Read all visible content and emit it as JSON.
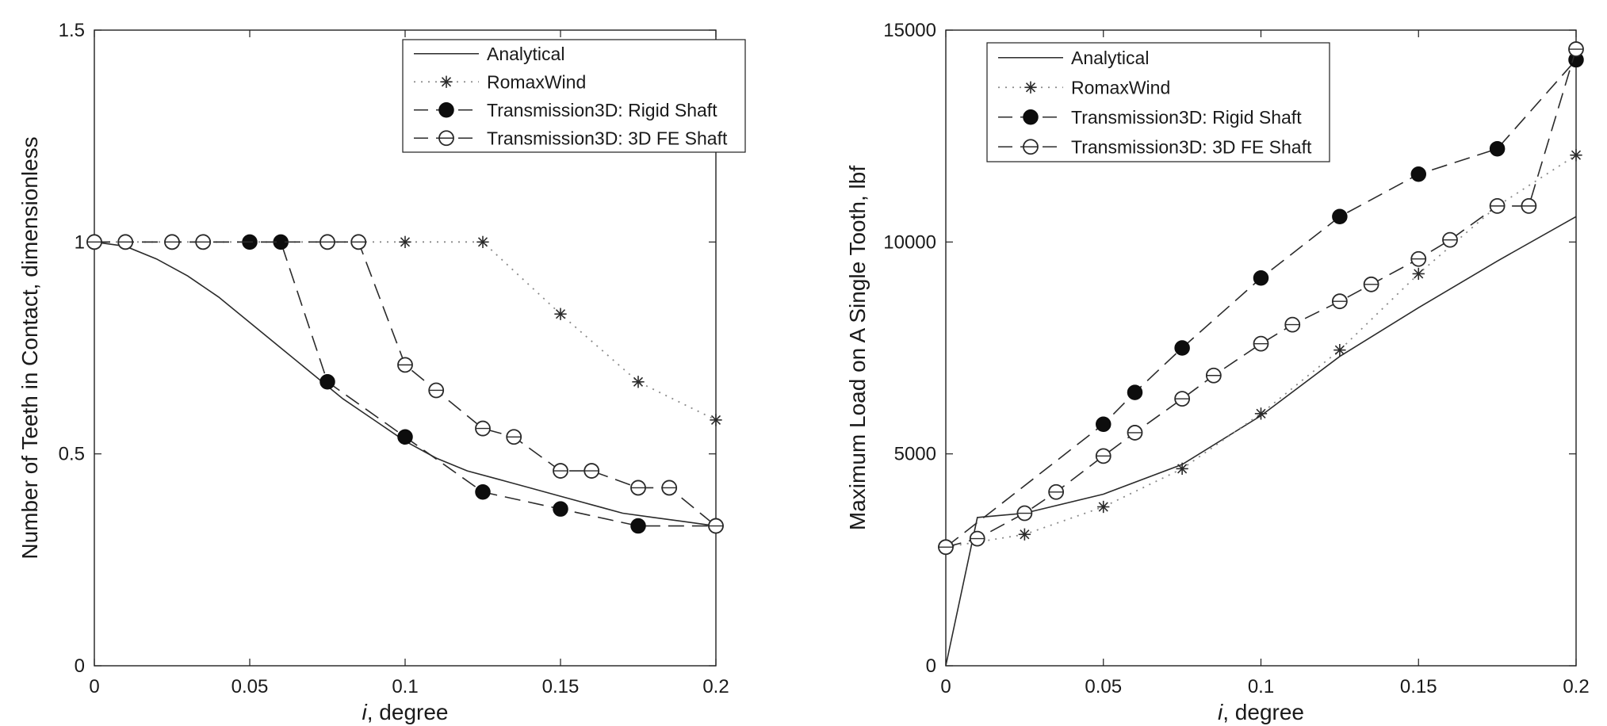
{
  "chart_data": [
    {
      "type": "line",
      "xlabel": "degree",
      "xlabel_italic_prefix": "i",
      "ylabel": "Number of Teeth in Contact, dimensionless",
      "xlim": [
        0,
        0.2
      ],
      "ylim": [
        0,
        1.5
      ],
      "x_ticks": [
        0,
        0.05,
        0.1,
        0.15,
        0.2
      ],
      "x_tick_labels": [
        "0",
        "0.05",
        "0.1",
        "0.15",
        "0.2"
      ],
      "y_ticks": [
        0,
        0.5,
        1,
        1.5
      ],
      "y_tick_labels": [
        "0",
        "0.5",
        "1",
        "1.5"
      ],
      "grid": false,
      "legend_position": "top-right",
      "series": [
        {
          "name": "Analytical",
          "style": "solid",
          "marker": "none",
          "points": [
            [
              0,
              1
            ],
            [
              0.01,
              0.99
            ],
            [
              0.02,
              0.96
            ],
            [
              0.03,
              0.92
            ],
            [
              0.04,
              0.87
            ],
            [
              0.05,
              0.81
            ],
            [
              0.06,
              0.75
            ],
            [
              0.07,
              0.69
            ],
            [
              0.08,
              0.63
            ],
            [
              0.09,
              0.58
            ],
            [
              0.1,
              0.53
            ],
            [
              0.11,
              0.49
            ],
            [
              0.12,
              0.46
            ],
            [
              0.13,
              0.44
            ],
            [
              0.14,
              0.42
            ],
            [
              0.15,
              0.4
            ],
            [
              0.16,
              0.38
            ],
            [
              0.17,
              0.36
            ],
            [
              0.18,
              0.35
            ],
            [
              0.19,
              0.34
            ],
            [
              0.2,
              0.33
            ]
          ]
        },
        {
          "name": "RomaxWind",
          "style": "dotted",
          "marker": "asterisk",
          "points": [
            [
              0,
              1
            ],
            [
              0.025,
              1
            ],
            [
              0.075,
              1
            ],
            [
              0.1,
              1
            ],
            [
              0.125,
              1
            ],
            [
              0.15,
              0.83
            ],
            [
              0.175,
              0.67
            ],
            [
              0.2,
              0.58
            ]
          ]
        },
        {
          "name": "Transmission3D: Rigid Shaft",
          "style": "dashed",
          "marker": "filled-circle",
          "points": [
            [
              0,
              1
            ],
            [
              0.025,
              1
            ],
            [
              0.05,
              1
            ],
            [
              0.06,
              1
            ],
            [
              0.075,
              0.67
            ],
            [
              0.1,
              0.54
            ],
            [
              0.125,
              0.41
            ],
            [
              0.15,
              0.37
            ],
            [
              0.175,
              0.33
            ],
            [
              0.2,
              0.33
            ]
          ]
        },
        {
          "name": "Transmission3D: 3D FE Shaft",
          "style": "dashed",
          "marker": "open-circle",
          "points": [
            [
              0,
              1
            ],
            [
              0.01,
              1
            ],
            [
              0.025,
              1
            ],
            [
              0.035,
              1
            ],
            [
              0.075,
              1
            ],
            [
              0.085,
              1
            ],
            [
              0.1,
              0.71
            ],
            [
              0.11,
              0.65
            ],
            [
              0.125,
              0.56
            ],
            [
              0.135,
              0.54
            ],
            [
              0.15,
              0.46
            ],
            [
              0.16,
              0.46
            ],
            [
              0.175,
              0.42
            ],
            [
              0.185,
              0.42
            ],
            [
              0.2,
              0.33
            ]
          ]
        }
      ]
    },
    {
      "type": "line",
      "xlabel": "degree",
      "xlabel_italic_prefix": "i",
      "ylabel": "Maximum Load on A Single Tooth, lbf",
      "xlim": [
        0,
        0.2
      ],
      "ylim": [
        0,
        15000
      ],
      "x_ticks": [
        0,
        0.05,
        0.1,
        0.15,
        0.2
      ],
      "x_tick_labels": [
        "0",
        "0.05",
        "0.1",
        "0.15",
        "0.2"
      ],
      "y_ticks": [
        0,
        5000,
        10000,
        15000
      ],
      "y_tick_labels": [
        "0",
        "5000",
        "10000",
        "15000"
      ],
      "grid": false,
      "legend_position": "top-left",
      "series": [
        {
          "name": "Analytical",
          "style": "solid",
          "marker": "none",
          "points": [
            [
              0,
              0
            ],
            [
              0.01,
              3500
            ],
            [
              0.025,
              3600
            ],
            [
              0.05,
              4050
            ],
            [
              0.075,
              4750
            ],
            [
              0.1,
              5900
            ],
            [
              0.125,
              7300
            ],
            [
              0.15,
              8450
            ],
            [
              0.175,
              9550
            ],
            [
              0.2,
              10600
            ]
          ]
        },
        {
          "name": "RomaxWind",
          "style": "dotted",
          "marker": "asterisk",
          "points": [
            [
              0,
              2800
            ],
            [
              0.025,
              3100
            ],
            [
              0.05,
              3750
            ],
            [
              0.075,
              4650
            ],
            [
              0.1,
              5950
            ],
            [
              0.125,
              7450
            ],
            [
              0.15,
              9250
            ],
            [
              0.175,
              10850
            ],
            [
              0.2,
              12050
            ]
          ]
        },
        {
          "name": "Transmission3D: Rigid Shaft",
          "style": "dashed",
          "marker": "filled-circle",
          "points": [
            [
              0,
              2800
            ],
            [
              0.05,
              5700
            ],
            [
              0.06,
              6450
            ],
            [
              0.075,
              7500
            ],
            [
              0.1,
              9150
            ],
            [
              0.125,
              10600
            ],
            [
              0.15,
              11600
            ],
            [
              0.175,
              12200
            ],
            [
              0.2,
              14300
            ]
          ]
        },
        {
          "name": "Transmission3D: 3D FE Shaft",
          "style": "dashed",
          "marker": "open-circle",
          "points": [
            [
              0,
              2800
            ],
            [
              0.01,
              3000
            ],
            [
              0.025,
              3600
            ],
            [
              0.035,
              4100
            ],
            [
              0.05,
              4950
            ],
            [
              0.06,
              5500
            ],
            [
              0.075,
              6300
            ],
            [
              0.085,
              6850
            ],
            [
              0.1,
              7600
            ],
            [
              0.11,
              8050
            ],
            [
              0.125,
              8600
            ],
            [
              0.135,
              9000
            ],
            [
              0.15,
              9600
            ],
            [
              0.16,
              10050
            ],
            [
              0.175,
              10850
            ],
            [
              0.185,
              10850
            ],
            [
              0.2,
              14550
            ]
          ]
        }
      ]
    }
  ]
}
